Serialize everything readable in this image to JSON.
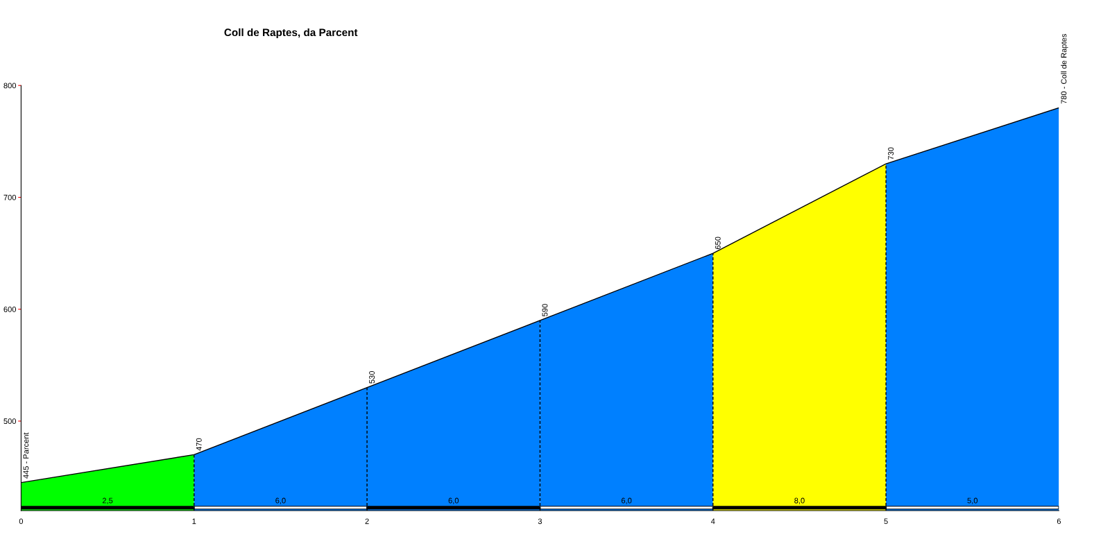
{
  "chart_data": {
    "type": "area",
    "title": "Coll de Raptes, da Parcent",
    "xlim": [
      0,
      6
    ],
    "xticks": [
      0,
      1,
      2,
      3,
      4,
      5,
      6
    ],
    "ylim": [
      420,
      800
    ],
    "yticks": [
      500,
      600,
      700,
      800
    ],
    "series": [
      {
        "x": [
          0,
          1
        ],
        "values": [
          445,
          470
        ],
        "color": "#00ff00",
        "value_labels": [
          "445 - Parcent",
          null
        ]
      },
      {
        "x": [
          1,
          2
        ],
        "values": [
          470,
          530
        ],
        "color": "#0080ff",
        "value_labels": [
          "470",
          null
        ]
      },
      {
        "x": [
          2,
          3
        ],
        "values": [
          530,
          590
        ],
        "color": "#0080ff",
        "value_labels": [
          "530",
          null
        ]
      },
      {
        "x": [
          3,
          4
        ],
        "values": [
          590,
          650
        ],
        "color": "#0080ff",
        "value_labels": [
          "590",
          null
        ]
      },
      {
        "x": [
          4,
          5
        ],
        "values": [
          650,
          730
        ],
        "color": "#ffff00",
        "value_labels": [
          "650",
          null
        ]
      },
      {
        "x": [
          5,
          6
        ],
        "values": [
          730,
          780
        ],
        "color": "#0080ff",
        "value_labels": [
          "730",
          "780 - Coll de Raptes"
        ]
      }
    ],
    "ref_lines": [
      {
        "axis": "x",
        "value": 1,
        "line_style": "dashed",
        "color": "#000000"
      },
      {
        "axis": "x",
        "value": 2,
        "line_style": "dashed",
        "color": "#000000"
      },
      {
        "axis": "x",
        "value": 3,
        "line_style": "dashed",
        "color": "#000000"
      },
      {
        "axis": "x",
        "value": 4,
        "line_style": "dashed",
        "color": "#000000"
      },
      {
        "axis": "x",
        "value": 5,
        "line_style": "dashed",
        "color": "#000000"
      }
    ],
    "annotations": [
      "2,5",
      "6,0",
      "6,0",
      "6,0",
      "8,0",
      "5,0"
    ],
    "grid": false,
    "legend": false
  }
}
